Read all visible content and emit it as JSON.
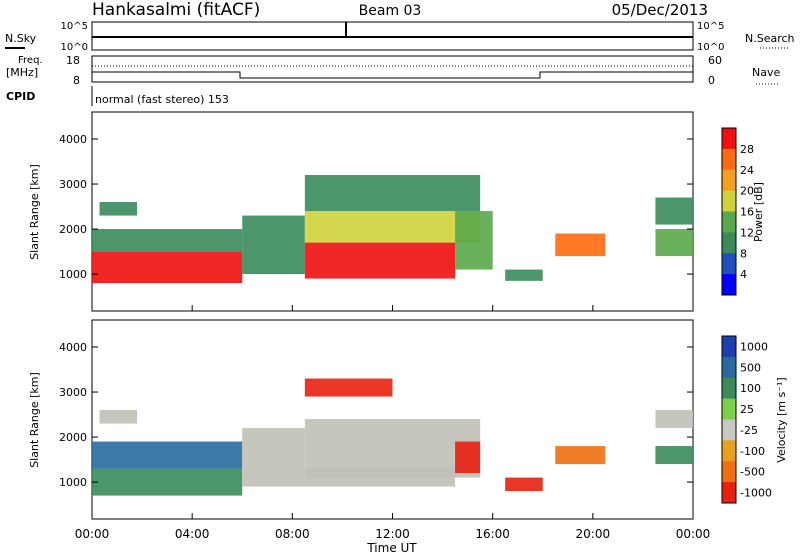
{
  "header": {
    "station": "Hankasalmi (fitACF)",
    "beam": "Beam 03",
    "date": "05/Dec/2013"
  },
  "strip_labels": {
    "nsky": "N.Sky",
    "nsearch": "N.Search",
    "freq_line1": "Freq.",
    "freq_line2": "[MHz]",
    "nave": "Nave",
    "cpid": "CPID",
    "mode": "normal (fast stereo) 153"
  },
  "strip_ticks": {
    "noise_left": [
      "10^5",
      "10^0"
    ],
    "noise_right": [
      "10^5",
      "10^0"
    ],
    "freq_left": [
      "18",
      "8"
    ],
    "nave_right": [
      "60",
      "0"
    ]
  },
  "colors": {
    "power_scale": [
      "#0000ff",
      "#1f4fbf",
      "#3a8a5a",
      "#5aa84a",
      "#cfd23a",
      "#f2a020",
      "#ff6a10",
      "#f01010"
    ],
    "velocity_scale": [
      "#1a3fb0",
      "#2a6aa0",
      "#3a8a5a",
      "#7dd04a",
      "#c8c8c0",
      "#e8a020",
      "#f07010",
      "#e82010"
    ],
    "ground_scatter": "#c0c0b8"
  },
  "chart_data": [
    {
      "type": "heatmap",
      "panel": "power",
      "ylabel": "Slant Range [km]",
      "xlabel": "Time UT",
      "x_ticks": [
        "00:00",
        "04:00",
        "08:00",
        "12:00",
        "16:00",
        "20:00",
        "00:00"
      ],
      "y_ticks": [
        "1000",
        "2000",
        "3000",
        "4000"
      ],
      "xlim_hours": [
        0,
        24
      ],
      "ylim_km": [
        180,
        4600
      ],
      "colorbar": {
        "label": "Power [dB]",
        "ticks": [
          "4",
          "8",
          "12",
          "16",
          "20",
          "24",
          "28"
        ]
      },
      "regions": [
        {
          "t": [
            0.0,
            6.0
          ],
          "r": [
            800,
            1500
          ],
          "level": 28
        },
        {
          "t": [
            0.0,
            6.0
          ],
          "r": [
            1500,
            2000
          ],
          "level": 10
        },
        {
          "t": [
            0.3,
            1.8
          ],
          "r": [
            2300,
            2600
          ],
          "level": 8
        },
        {
          "t": [
            6.0,
            8.5
          ],
          "r": [
            1000,
            2300
          ],
          "level": 10
        },
        {
          "t": [
            8.5,
            14.5
          ],
          "r": [
            900,
            1700
          ],
          "level": 28
        },
        {
          "t": [
            8.5,
            15.5
          ],
          "r": [
            1700,
            2400
          ],
          "level": 16
        },
        {
          "t": [
            8.5,
            15.5
          ],
          "r": [
            2400,
            3200
          ],
          "level": 8
        },
        {
          "t": [
            14.5,
            16.0
          ],
          "r": [
            1100,
            2400
          ],
          "level": 12
        },
        {
          "t": [
            16.5,
            18.0
          ],
          "r": [
            850,
            1100
          ],
          "level": 8
        },
        {
          "t": [
            18.5,
            20.5
          ],
          "r": [
            1400,
            1900
          ],
          "level": 24
        },
        {
          "t": [
            22.5,
            24.0
          ],
          "r": [
            2100,
            2700
          ],
          "level": 10
        },
        {
          "t": [
            22.5,
            24.0
          ],
          "r": [
            1400,
            2000
          ],
          "level": 14
        }
      ]
    },
    {
      "type": "heatmap",
      "panel": "velocity",
      "ylabel": "Slant Range [km]",
      "xlabel": "Time UT",
      "x_ticks": [
        "00:00",
        "04:00",
        "08:00",
        "12:00",
        "16:00",
        "20:00",
        "00:00"
      ],
      "y_ticks": [
        "1000",
        "2000",
        "3000",
        "4000"
      ],
      "xlim_hours": [
        0,
        24
      ],
      "ylim_km": [
        180,
        4600
      ],
      "colorbar": {
        "label": "Velocity [m s⁻¹]",
        "ticks": [
          "1000",
          "500",
          "100",
          "25",
          "-25",
          "-100",
          "-500",
          "-1000"
        ]
      },
      "regions": [
        {
          "t": [
            0.0,
            6.0
          ],
          "r": [
            700,
            1300
          ],
          "level": 100
        },
        {
          "t": [
            0.0,
            6.0
          ],
          "r": [
            1300,
            1900
          ],
          "level": 500
        },
        {
          "t": [
            0.3,
            1.8
          ],
          "r": [
            2300,
            2600
          ],
          "level": 0
        },
        {
          "t": [
            6.0,
            8.5
          ],
          "r": [
            900,
            2200
          ],
          "level": 0
        },
        {
          "t": [
            8.5,
            15.5
          ],
          "r": [
            1100,
            2400
          ],
          "level": 0
        },
        {
          "t": [
            8.5,
            14.5
          ],
          "r": [
            900,
            1300
          ],
          "level": 0
        },
        {
          "t": [
            8.5,
            12.0
          ],
          "r": [
            2900,
            3300
          ],
          "level": -300
        },
        {
          "t": [
            14.5,
            15.5
          ],
          "r": [
            1200,
            1900
          ],
          "level": -500
        },
        {
          "t": [
            16.5,
            18.0
          ],
          "r": [
            800,
            1100
          ],
          "level": -300
        },
        {
          "t": [
            18.5,
            20.5
          ],
          "r": [
            1400,
            1800
          ],
          "level": -200
        },
        {
          "t": [
            22.5,
            24.0
          ],
          "r": [
            2200,
            2600
          ],
          "level": 0
        },
        {
          "t": [
            22.5,
            24.0
          ],
          "r": [
            1400,
            1800
          ],
          "level": 100
        }
      ]
    }
  ]
}
